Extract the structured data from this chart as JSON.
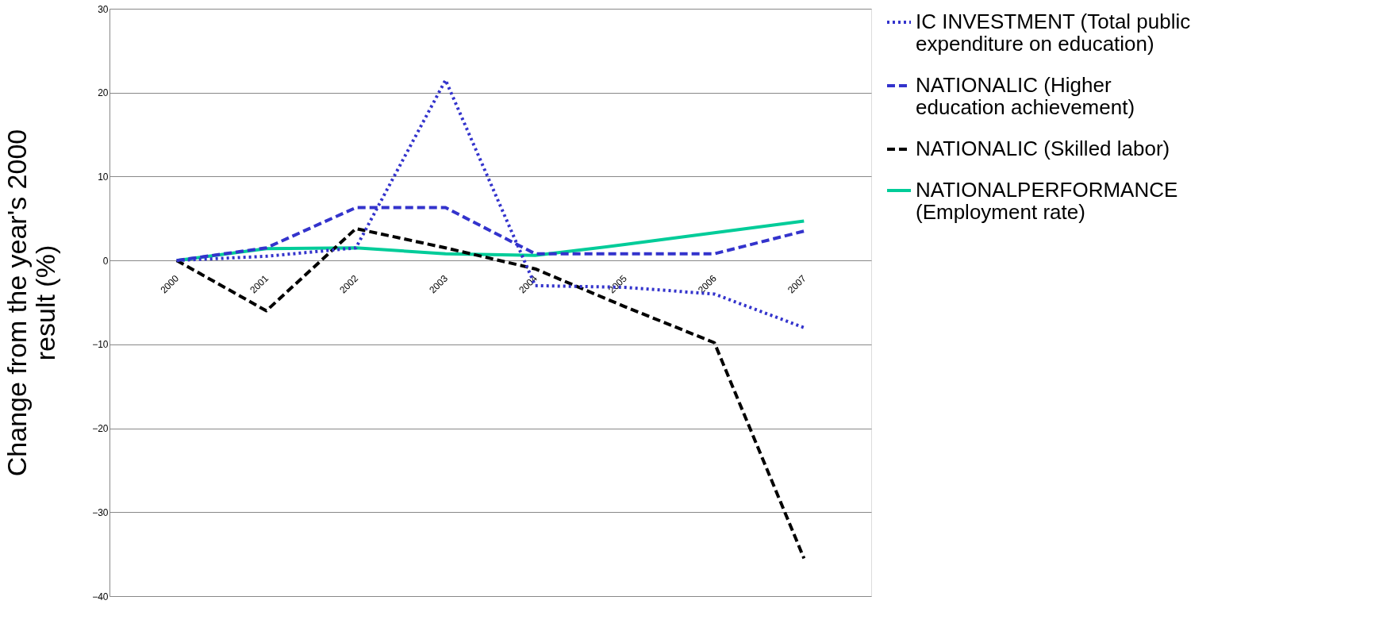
{
  "chart_data": {
    "type": "line",
    "ylabel": "Change from the year's 2000\nresult (%)",
    "categories": [
      "2000",
      "2001",
      "2002",
      "2003",
      "2004",
      "2005",
      "2006",
      "2007"
    ],
    "series": [
      {
        "name": "IC INVESTMENT (Total public\nexpenditure on education)",
        "color": "#3333cc",
        "line_style": "dotted",
        "values": [
          0,
          0.5,
          1.5,
          21.5,
          -3,
          -3.2,
          -4,
          -8
        ]
      },
      {
        "name": "NATIONALIC (Higher\neducation achievement)",
        "color": "#3333cc",
        "line_style": "dashed",
        "values": [
          0,
          1.5,
          6.3,
          6.3,
          0.8,
          0.8,
          0.8,
          3.5
        ]
      },
      {
        "name": "NATIONALIC (Skilled labor)",
        "color": "#000000",
        "line_style": "dashed",
        "values": [
          0,
          -6,
          3.8,
          1.5,
          -1,
          -5.5,
          -9.8,
          -35.5
        ]
      },
      {
        "name": "NATIONALPERFORMANCE\n(Employment rate)",
        "color": "#00cc99",
        "line_style": "solid",
        "values": [
          0,
          1.4,
          1.5,
          0.8,
          0.6,
          1.9,
          3.3,
          4.7
        ]
      }
    ],
    "ylim": [
      -40,
      30
    ],
    "yticks": [
      -40,
      -30,
      -20,
      -10,
      0,
      10,
      20,
      30
    ],
    "grid": "y",
    "legend": "right",
    "marker": "none"
  }
}
